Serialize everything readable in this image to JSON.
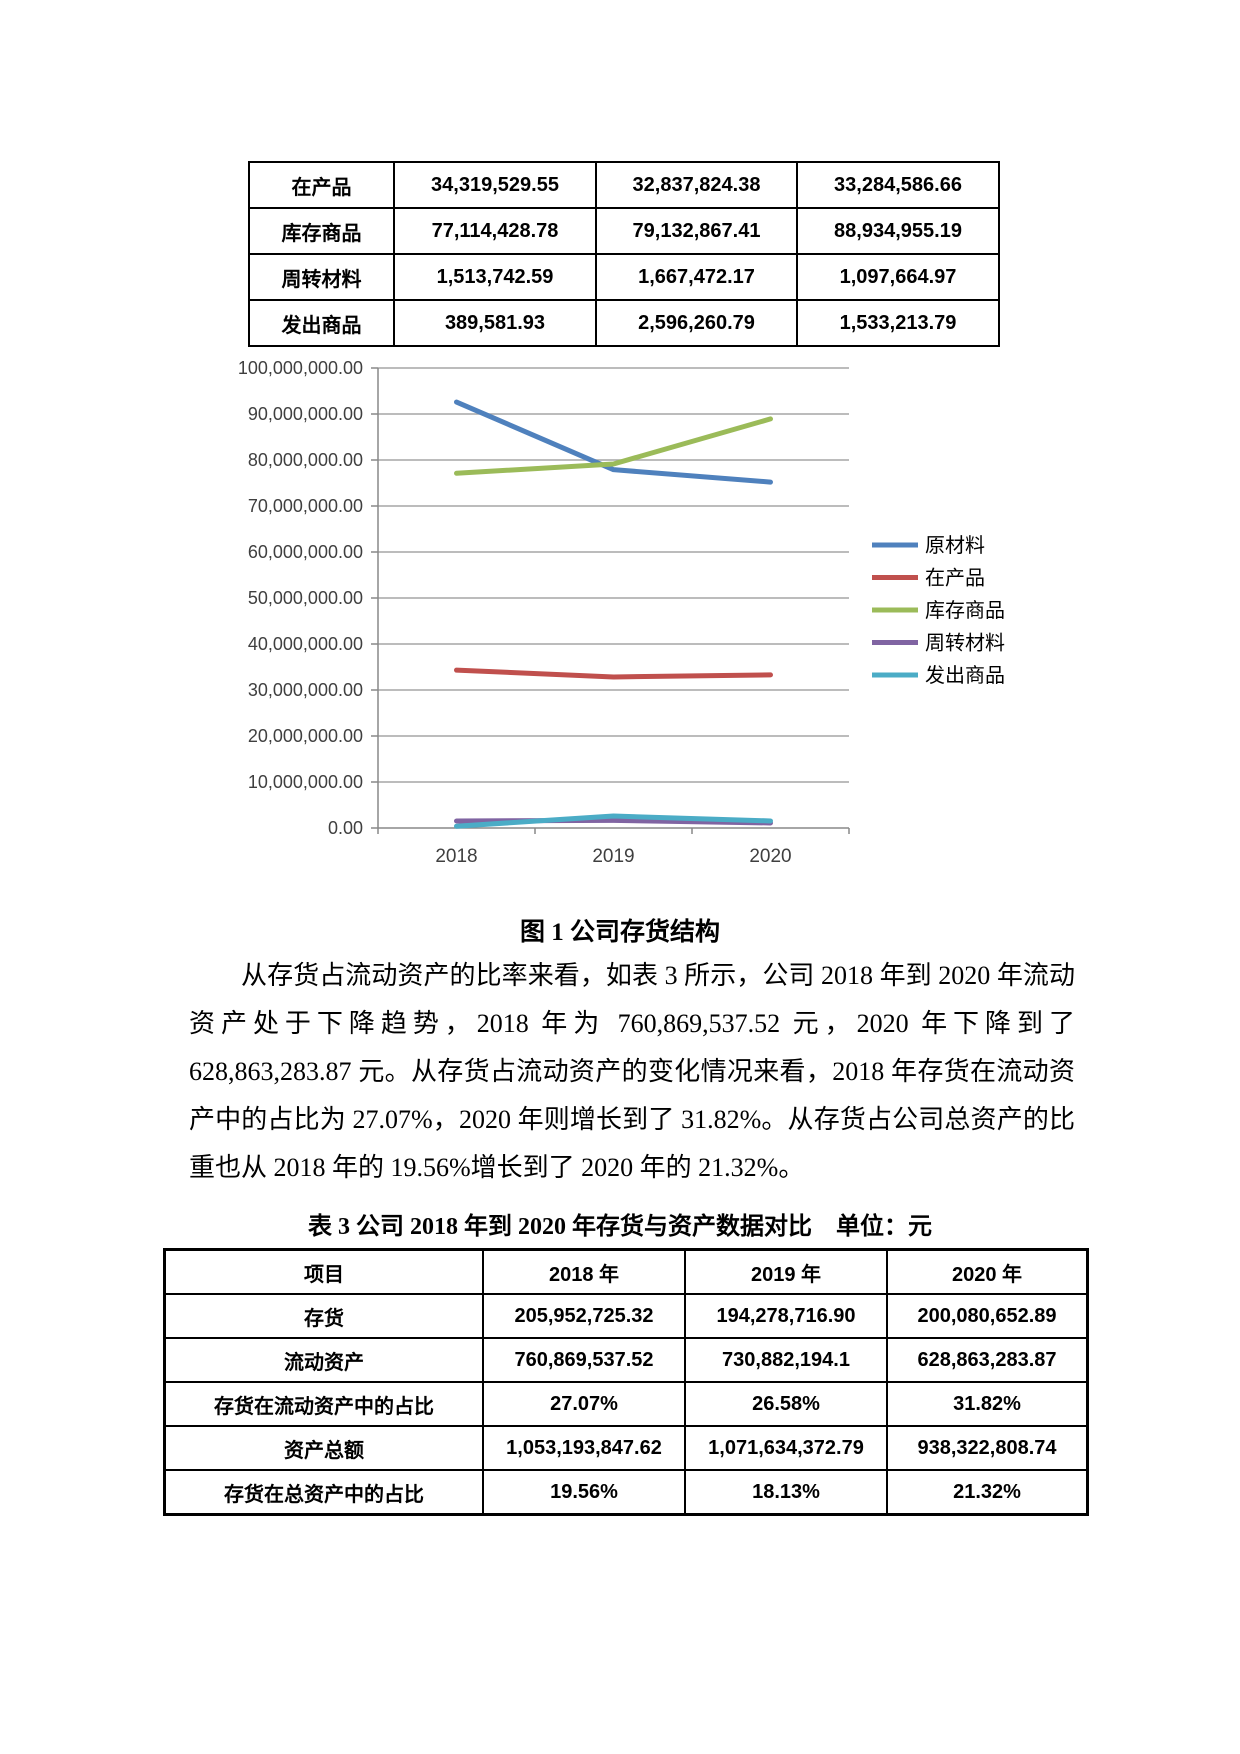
{
  "top_table": {
    "rows": [
      {
        "label": "在产品",
        "values": [
          "34,319,529.55",
          "32,837,824.38",
          "33,284,586.66"
        ]
      },
      {
        "label": "库存商品",
        "values": [
          "77,114,428.78",
          "79,132,867.41",
          "88,934,955.19"
        ]
      },
      {
        "label": "周转材料",
        "values": [
          "1,513,742.59",
          "1,667,472.17",
          "1,097,664.97"
        ]
      },
      {
        "label": "发出商品",
        "values": [
          "389,581.93",
          "2,596,260.79",
          "1,533,213.79"
        ]
      }
    ]
  },
  "chart_data": {
    "type": "line",
    "x": [
      "2018",
      "2019",
      "2020"
    ],
    "series": [
      {
        "name": "原材料",
        "color": "#4F81BD",
        "values": [
          92600000,
          77900000,
          75200000
        ]
      },
      {
        "name": "在产品",
        "color": "#C0504D",
        "values": [
          34319529.55,
          32837824.38,
          33284586.66
        ]
      },
      {
        "name": "库存商品",
        "color": "#9BBB59",
        "values": [
          77114428.78,
          79132867.41,
          88934955.19
        ]
      },
      {
        "name": "周转材料",
        "color": "#8064A2",
        "values": [
          1513742.59,
          1667472.17,
          1097664.97
        ]
      },
      {
        "name": "发出商品",
        "color": "#4BACC6",
        "values": [
          389581.93,
          2596260.79,
          1533213.79
        ]
      }
    ],
    "ylim": [
      0,
      100000000
    ],
    "ytick_step": 10000000,
    "y_tick_format": "#,##0.00",
    "grid": true,
    "legend_position": "right",
    "gridline_color": "#A6A6A6",
    "axis_color": "#898989",
    "label_color": "#3F3F3F"
  },
  "figure_caption": "图 1 公司存货结构",
  "paragraph": {
    "lines": [
      "从存货占流动资产的比率来看，如表 3 所示，公司 2018 年到 2020 年流动",
      "资产处于下降趋势，2018 年为 760,869,537.52 元，2020 年下降到了",
      "628,863,283.87 元。从存货占流动资产的变化情况来看，2018 年存货在流动资",
      "产中的占比为 27.07%，2020 年则增长到了 31.82%。从存货占公司总资产的比",
      "重也从 2018 年的 19.56%增长到了 2020 年的 21.32%。"
    ]
  },
  "table_caption": "表 3 公司 2018 年到 2020 年存货与资产数据对比　单位：元",
  "bottom_table": {
    "header": [
      "项目",
      "2018 年",
      "2019 年",
      "2020 年"
    ],
    "rows": [
      {
        "label": "存货",
        "values": [
          "205,952,725.32",
          "194,278,716.90",
          "200,080,652.89"
        ]
      },
      {
        "label": "流动资产",
        "values": [
          "760,869,537.52",
          "730,882,194.1",
          "628,863,283.87"
        ]
      },
      {
        "label": "存货在流动资产中的占比",
        "values": [
          "27.07%",
          "26.58%",
          "31.82%"
        ]
      },
      {
        "label": "资产总额",
        "values": [
          "1,053,193,847.62",
          "1,071,634,372.79",
          "938,322,808.74"
        ]
      },
      {
        "label": "存货在总资产中的占比",
        "values": [
          "19.56%",
          "18.13%",
          "21.32%"
        ]
      }
    ]
  }
}
